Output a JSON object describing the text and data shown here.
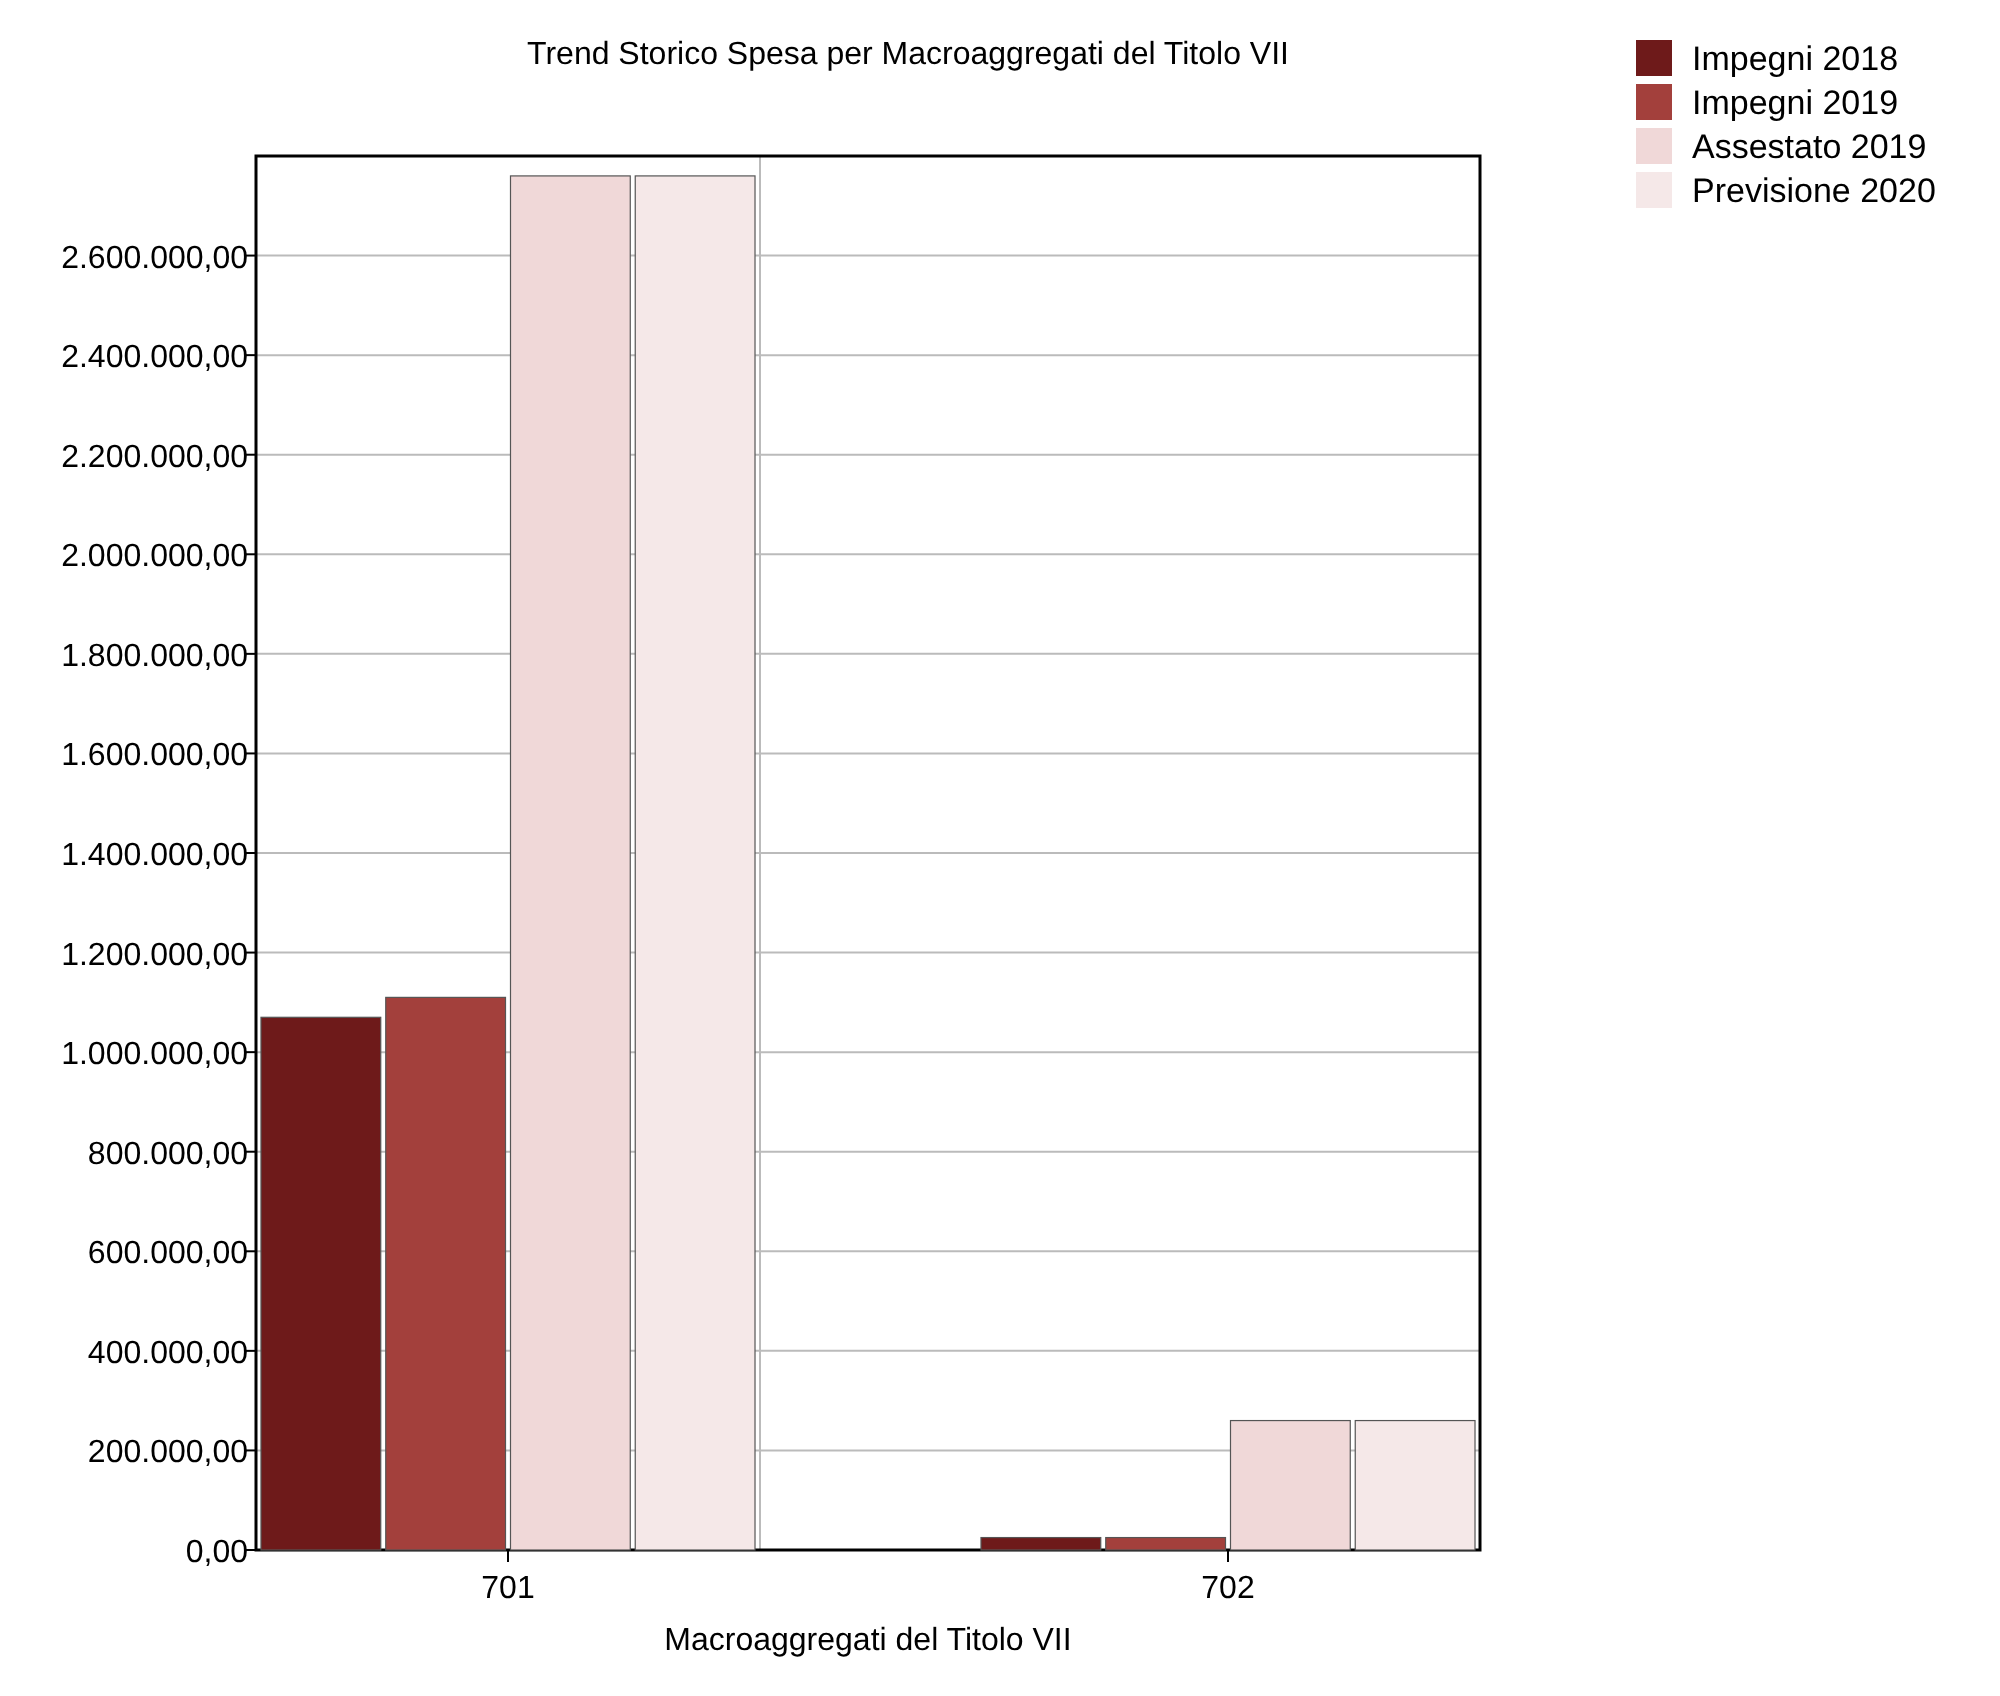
{
  "chart_data": {
    "type": "bar",
    "title": "Trend Storico Spesa per Macroaggregati del Titolo VII",
    "xlabel": "Macroaggregati del Titolo VII",
    "categories": [
      "701",
      "702"
    ],
    "series": [
      {
        "name": "Impegni 2018",
        "color": "#6e1a1a",
        "values": [
          1070000,
          25000
        ]
      },
      {
        "name": "Impegni 2019",
        "color": "#a3403c",
        "values": [
          1110000,
          25000
        ]
      },
      {
        "name": "Assestato 2019",
        "color": "#f0d8d8",
        "values": [
          2760000,
          260000
        ]
      },
      {
        "name": "Previsione 2020",
        "color": "#f5e8e8",
        "values": [
          2760000,
          260000
        ]
      }
    ],
    "ylim": [
      0,
      2800000
    ],
    "yticks": [
      {
        "value": 0,
        "label": "0,00"
      },
      {
        "value": 200000,
        "label": "200.000,00"
      },
      {
        "value": 400000,
        "label": "400.000,00"
      },
      {
        "value": 600000,
        "label": "600.000,00"
      },
      {
        "value": 800000,
        "label": "800.000,00"
      },
      {
        "value": 1000000,
        "label": "1.000.000,00"
      },
      {
        "value": 1200000,
        "label": "1.200.000,00"
      },
      {
        "value": 1400000,
        "label": "1.400.000,00"
      },
      {
        "value": 1600000,
        "label": "1.600.000,00"
      },
      {
        "value": 1800000,
        "label": "1.800.000,00"
      },
      {
        "value": 2000000,
        "label": "2.000.000,00"
      },
      {
        "value": 2200000,
        "label": "2.200.000,00"
      },
      {
        "value": 2400000,
        "label": "2.400.000,00"
      },
      {
        "value": 2600000,
        "label": "2.600.000,00"
      }
    ],
    "grid": true,
    "legend": "top right"
  }
}
